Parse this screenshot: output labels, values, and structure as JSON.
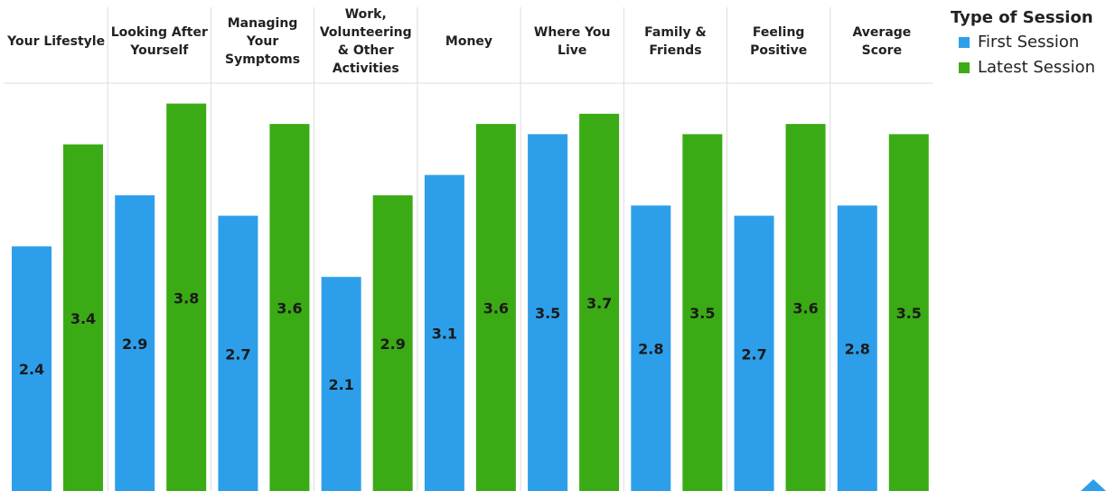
{
  "chart_data": {
    "type": "bar",
    "categories": [
      "Your Lifestyle",
      "Looking After Yourself",
      "Managing Your Symptoms",
      "Work, Volunteering & Other Activities",
      "Money",
      "Where You Live",
      "Family & Friends",
      "Feeling Positive",
      "Average Score"
    ],
    "legend_title": "Type of Session",
    "series": [
      {
        "name": "First Session",
        "color": "#2d9fea",
        "values": [
          2.4,
          2.9,
          2.7,
          2.1,
          3.1,
          3.5,
          2.8,
          2.7,
          2.8
        ]
      },
      {
        "name": "Latest Session",
        "color": "#3aab14",
        "values": [
          3.4,
          3.8,
          3.6,
          2.9,
          3.6,
          3.7,
          3.5,
          3.6,
          3.5
        ]
      }
    ],
    "ylim": [
      0,
      4
    ],
    "legend": "right"
  }
}
